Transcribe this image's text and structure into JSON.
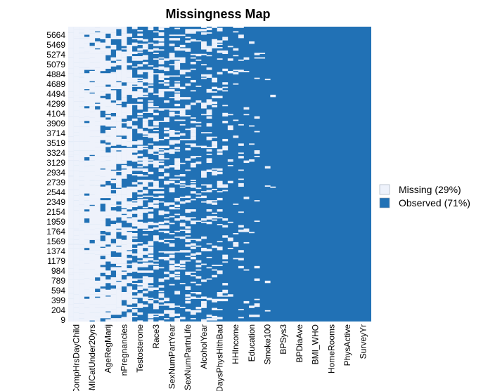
{
  "chart_data": {
    "type": "heatmap",
    "title": "Missingness Map",
    "xlabel": "",
    "ylabel": "",
    "x_tick_labels": [
      "CompHrsDayChild",
      "BMICatUnder20yrs",
      "AgeRegMarij",
      "nPregnancies",
      "Testosterone",
      "Race3",
      "SexNumPartYear",
      "SexNumPartnLife",
      "AlcoholYear",
      "DaysPhysHlthBad",
      "HHIncome",
      "Education",
      "Smoke100",
      "BPSys3",
      "BPDiaAve",
      "BMI_WHO",
      "HomeRooms",
      "PhysActive",
      "SurveyYr"
    ],
    "y_tick_labels": [
      "5664",
      "5469",
      "5274",
      "5079",
      "4884",
      "4689",
      "4494",
      "4299",
      "4104",
      "3909",
      "3714",
      "3519",
      "3324",
      "3129",
      "2934",
      "2739",
      "2544",
      "2349",
      "2154",
      "1959",
      "1764",
      "1569",
      "1374",
      "1179",
      "984",
      "789",
      "594",
      "399",
      "204",
      "9"
    ],
    "legend": [
      {
        "label": "Missing (29%)",
        "color": "#eef2fb"
      },
      {
        "label": "Observed (71%)",
        "color": "#2171b5"
      }
    ],
    "legend_position": "right",
    "colors": {
      "missing": "#eef2fb",
      "observed": "#2171b5"
    }
  }
}
